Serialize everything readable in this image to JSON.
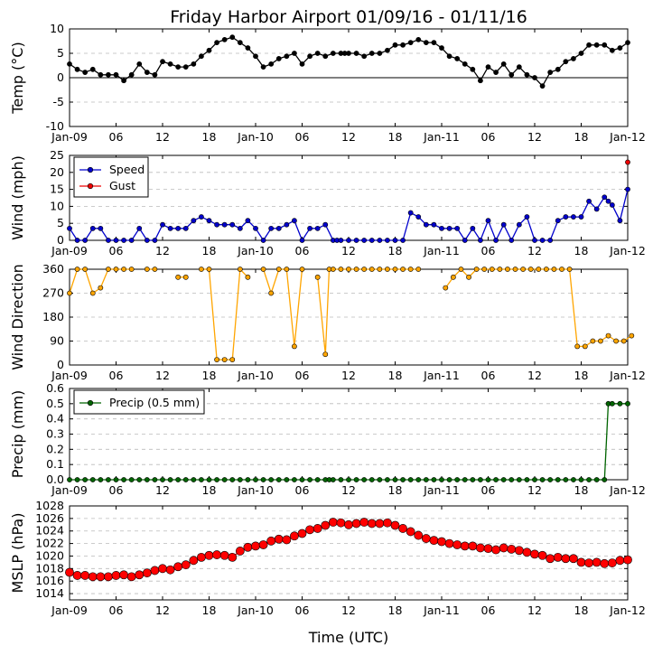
{
  "figure": {
    "title": "Friday Harbor Airport 01/09/16 - 01/11/16",
    "xlabel": "Time (UTC)",
    "xtick_labels": [
      "Jan-09",
      "06",
      "12",
      "18",
      "Jan-10",
      "06",
      "12",
      "18",
      "Jan-11",
      "06",
      "12",
      "18",
      "Jan-12"
    ]
  },
  "colors": {
    "temp": "#000000",
    "speed": "#0000cc",
    "gust": "#ee0000",
    "direction": "#ffa500",
    "precip": "#006400",
    "mslp": "#ff0000",
    "grid": "#bbbbbb"
  },
  "chart_data": [
    {
      "type": "line",
      "ylabel": "Temp (°C)",
      "ylim": [
        -10,
        10
      ],
      "yticks": [
        -10,
        -5,
        0,
        5,
        10
      ],
      "x_range_hours": [
        0,
        72
      ],
      "zero_line": true,
      "series": [
        {
          "x": [
            0,
            1,
            2,
            3,
            4,
            5,
            6,
            7,
            8,
            9,
            10,
            11,
            12,
            13,
            14,
            15,
            16,
            17,
            18,
            19,
            20,
            21,
            22,
            23,
            24,
            25,
            26,
            27,
            28,
            29,
            30,
            31,
            32,
            33,
            34,
            35,
            35.5,
            36,
            37,
            38,
            39,
            40,
            41,
            42,
            43,
            44,
            45,
            46,
            47,
            48,
            49,
            50,
            51,
            52,
            53,
            54,
            55,
            56,
            57,
            58,
            59,
            60,
            61,
            62,
            63,
            64,
            65,
            66,
            67,
            68,
            69,
            70,
            71,
            72
          ],
          "values": [
            2.8,
            1.7,
            1.1,
            1.7,
            0.6,
            0.6,
            0.6,
            -0.6,
            0.6,
            2.8,
            1.1,
            0.6,
            3.3,
            2.8,
            2.2,
            2.2,
            2.8,
            4.4,
            5.6,
            7.2,
            7.8,
            8.3,
            7.2,
            6.1,
            4.4,
            2.2,
            2.8,
            3.9,
            4.4,
            5.0,
            2.8,
            4.4,
            5.0,
            4.4,
            5.0,
            5.0,
            5.0,
            5.0,
            5.0,
            4.4,
            5.0,
            5.0,
            5.6,
            6.7,
            6.7,
            7.2,
            7.8,
            7.2,
            7.2,
            6.1,
            4.4,
            3.9,
            2.8,
            1.7,
            -0.6,
            2.2,
            1.1,
            2.8,
            0.6,
            2.2,
            0.6,
            0.0,
            -1.7,
            1.1,
            1.7,
            3.3,
            3.9,
            5.0,
            6.7,
            6.7,
            6.7,
            5.6,
            6.1,
            7.2
          ]
        }
      ]
    },
    {
      "type": "line",
      "ylabel": "Wind (mph)",
      "ylim": [
        0,
        25
      ],
      "yticks": [
        0,
        5,
        10,
        15,
        20,
        25
      ],
      "legend": "top-left",
      "series": [
        {
          "name": "Speed",
          "x": [
            0,
            1,
            2,
            3,
            4,
            5,
            6,
            7,
            8,
            9,
            10,
            11,
            12,
            13,
            14,
            15,
            16,
            17,
            18,
            19,
            20,
            21,
            22,
            23,
            24,
            25,
            26,
            27,
            28,
            29,
            30,
            31,
            32,
            33,
            34,
            34.5,
            35,
            36,
            37,
            38,
            39,
            40,
            41,
            42,
            43,
            44,
            45,
            46,
            47,
            48,
            49,
            50,
            51,
            52,
            53,
            54,
            55,
            56,
            57,
            58,
            59,
            60,
            61,
            62,
            63,
            64,
            65,
            66,
            67,
            68,
            69,
            69.5,
            70,
            71,
            72
          ],
          "values": [
            3.5,
            0,
            0,
            3.5,
            3.5,
            0,
            0,
            0,
            0,
            3.5,
            0,
            0,
            4.6,
            3.5,
            3.5,
            3.5,
            5.8,
            6.9,
            5.8,
            4.6,
            4.6,
            4.6,
            3.5,
            5.8,
            3.5,
            0,
            3.5,
            3.5,
            4.6,
            5.8,
            0,
            3.5,
            3.5,
            4.6,
            0,
            0,
            0,
            0,
            0,
            0,
            0,
            0,
            0,
            0,
            0,
            8.1,
            6.9,
            4.6,
            4.6,
            3.5,
            3.5,
            3.5,
            0,
            3.5,
            0,
            5.8,
            0,
            4.6,
            0,
            4.6,
            6.9,
            0,
            0,
            0,
            5.8,
            6.9,
            6.9,
            6.9,
            11.5,
            9.2,
            12.7,
            11.5,
            10.4,
            5.8,
            15.0
          ]
        },
        {
          "name": "Gust",
          "x": [
            72
          ],
          "values": [
            23.0
          ]
        }
      ]
    },
    {
      "type": "scatter",
      "ylabel": "Wind Direction",
      "ylim": [
        0,
        360
      ],
      "yticks": [
        0,
        90,
        180,
        270,
        360
      ],
      "series": [
        {
          "x": [
            0,
            1,
            2,
            3,
            4,
            5,
            6,
            7,
            8,
            null,
            10,
            11,
            null,
            14,
            15,
            null,
            17,
            18,
            19,
            20,
            21,
            22,
            23,
            null,
            25,
            26,
            27,
            28,
            29,
            30,
            null,
            32,
            33,
            33.5,
            34,
            35,
            36,
            37,
            38,
            39,
            40,
            41,
            42,
            43,
            44,
            45,
            null,
            48.5,
            49.5,
            50.5,
            51.5,
            52.5,
            53.5,
            54.5,
            55.5,
            56.5,
            57.5,
            58.5,
            59.5,
            60.5,
            61.5,
            62.5,
            63.5,
            64.5,
            65.5,
            66.5,
            67.5,
            68.5,
            69.5,
            70.5,
            71.5,
            72.5
          ],
          "values": [
            270,
            360,
            360,
            270,
            290,
            360,
            360,
            360,
            360,
            null,
            360,
            360,
            null,
            330,
            330,
            null,
            360,
            360,
            20,
            20,
            20,
            360,
            330,
            null,
            360,
            270,
            360,
            360,
            70,
            360,
            null,
            330,
            40,
            360,
            360,
            360,
            360,
            360,
            360,
            360,
            360,
            360,
            360,
            360,
            360,
            360,
            null,
            290,
            330,
            360,
            330,
            360,
            360,
            360,
            360,
            360,
            360,
            360,
            360,
            360,
            360,
            360,
            360,
            360,
            70,
            70,
            90,
            90,
            110,
            90,
            90,
            110
          ]
        }
      ]
    },
    {
      "type": "line",
      "ylabel": "Precip (mm)",
      "ylim": [
        0,
        0.6
      ],
      "yticks": [
        0.0,
        0.1,
        0.2,
        0.3,
        0.4,
        0.5,
        0.6
      ],
      "legend": "top-left",
      "series": [
        {
          "name": "Precip (0.5 mm)",
          "x": [
            0,
            1,
            2,
            3,
            4,
            5,
            6,
            7,
            8,
            9,
            10,
            11,
            12,
            13,
            14,
            15,
            16,
            17,
            18,
            19,
            20,
            21,
            22,
            23,
            24,
            25,
            26,
            27,
            28,
            29,
            30,
            31,
            32,
            33,
            33.5,
            34,
            35,
            36,
            37,
            38,
            39,
            40,
            41,
            42,
            43,
            44,
            45,
            46,
            47,
            48,
            49,
            50,
            51,
            52,
            53,
            54,
            55,
            56,
            57,
            58,
            59,
            60,
            61,
            62,
            63,
            64,
            65,
            66,
            67,
            68,
            69,
            69.5,
            70,
            71,
            72
          ],
          "values": [
            0,
            0,
            0,
            0,
            0,
            0,
            0,
            0,
            0,
            0,
            0,
            0,
            0,
            0,
            0,
            0,
            0,
            0,
            0,
            0,
            0,
            0,
            0,
            0,
            0,
            0,
            0,
            0,
            0,
            0,
            0,
            0,
            0,
            0,
            0,
            0,
            0,
            0,
            0,
            0,
            0,
            0,
            0,
            0,
            0,
            0,
            0,
            0,
            0,
            0,
            0,
            0,
            0,
            0,
            0,
            0,
            0,
            0,
            0,
            0,
            0,
            0,
            0,
            0,
            0,
            0,
            0,
            0,
            0,
            0,
            0,
            0.5,
            0.5,
            0.5,
            0.5
          ]
        }
      ]
    },
    {
      "type": "line",
      "ylabel": "MSLP (hPa)",
      "ylim": [
        1013,
        1028
      ],
      "yticks": [
        1014,
        1016,
        1018,
        1020,
        1022,
        1024,
        1026,
        1028
      ],
      "series": [
        {
          "x": [
            0,
            1,
            2,
            3,
            4,
            5,
            6,
            7,
            8,
            9,
            10,
            11,
            12,
            13,
            14,
            15,
            16,
            17,
            18,
            19,
            20,
            21,
            22,
            23,
            24,
            25,
            26,
            27,
            28,
            29,
            30,
            31,
            32,
            33,
            34,
            35,
            36,
            37,
            38,
            39,
            40,
            41,
            42,
            43,
            44,
            45,
            46,
            47,
            48,
            49,
            50,
            51,
            52,
            53,
            54,
            55,
            56,
            57,
            58,
            59,
            60,
            61,
            62,
            63,
            64,
            65,
            66,
            67,
            68,
            69,
            70,
            71,
            72
          ],
          "values": [
            1017.4,
            1016.9,
            1016.9,
            1016.7,
            1016.7,
            1016.7,
            1016.9,
            1017.0,
            1016.7,
            1017.0,
            1017.3,
            1017.7,
            1018.0,
            1017.8,
            1018.3,
            1018.6,
            1019.3,
            1019.8,
            1020.1,
            1020.2,
            1020.1,
            1019.8,
            1020.8,
            1021.4,
            1021.6,
            1021.8,
            1022.4,
            1022.7,
            1022.6,
            1023.2,
            1023.6,
            1024.2,
            1024.4,
            1024.9,
            1025.4,
            1025.3,
            1025.0,
            1025.2,
            1025.4,
            1025.2,
            1025.2,
            1025.3,
            1024.9,
            1024.4,
            1023.9,
            1023.3,
            1022.8,
            1022.5,
            1022.3,
            1022.0,
            1021.8,
            1021.6,
            1021.6,
            1021.3,
            1021.2,
            1021.0,
            1021.3,
            1021.1,
            1020.9,
            1020.6,
            1020.3,
            1020.1,
            1019.6,
            1019.8,
            1019.6,
            1019.6,
            1019.0,
            1018.9,
            1019.0,
            1018.8,
            1018.9,
            1019.3,
            1019.4
          ]
        }
      ]
    }
  ]
}
